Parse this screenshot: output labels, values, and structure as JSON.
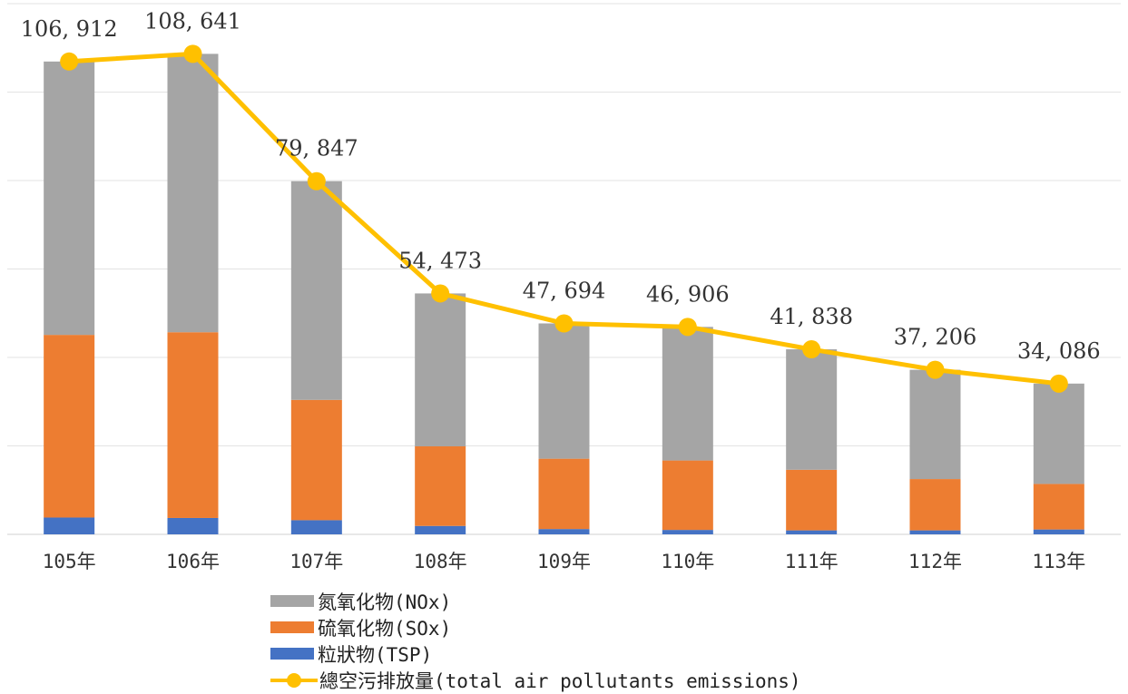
{
  "chart_data": {
    "type": "bar",
    "stacked": true,
    "categories": [
      "105年",
      "106年",
      "107年",
      "108年",
      "109年",
      "110年",
      "111年",
      "112年",
      "113年"
    ],
    "series": [
      {
        "name": "粒狀物(TSP)",
        "values": [
          3800,
          3700,
          3200,
          1900,
          1200,
          1000,
          900,
          900,
          1100
        ],
        "color": "#4472C4"
      },
      {
        "name": "硫氧化物(SOx)",
        "values": [
          41300,
          42000,
          27200,
          18000,
          15900,
          15700,
          13700,
          11600,
          10300
        ],
        "color": "#ED7D31"
      },
      {
        "name": "氮氧化物(NOx)",
        "values": [
          61812,
          62941,
          49447,
          34573,
          30594,
          30206,
          27238,
          24706,
          22686
        ],
        "color": "#A5A5A5"
      }
    ],
    "line_series": {
      "name": "總空污排放量(total air pollutants emissions)",
      "values": [
        106912,
        108641,
        79847,
        54473,
        47694,
        46906,
        41838,
        37206,
        34086
      ],
      "labels": [
        "106, 912",
        "108, 641",
        "79, 847",
        "54, 473",
        "47, 694",
        "46, 906",
        "41, 838",
        "37, 206",
        "34, 086"
      ],
      "color": "#FFC000"
    },
    "ylim": [
      0,
      120000
    ],
    "grid": true,
    "legend_position": "bottom"
  }
}
